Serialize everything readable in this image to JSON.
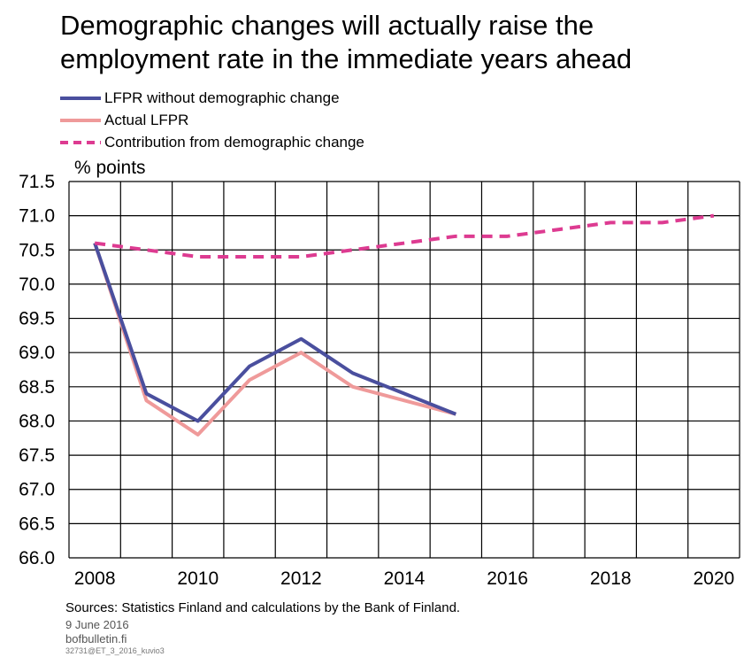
{
  "title": "Demographic changes will actually raise the employment rate in the immediate years ahead",
  "unit_label": "% points",
  "sources": "Sources: Statistics Finland and calculations by the Bank of Finland.",
  "date": "9 June 2016",
  "site": "bofbulletin.fi",
  "code": "32731@ET_3_2016_kuvio3",
  "colors": {
    "lfpr_without": "#4a4f9e",
    "actual": "#ef9a9a",
    "contribution": "#dd3b91",
    "grid": "#000000"
  },
  "chart_data": {
    "type": "line",
    "title": "Demographic changes will actually raise the employment rate in the immediate years ahead",
    "ylabel": "% points",
    "xlim": [
      2008,
      2020
    ],
    "ylim": [
      66.0,
      71.5
    ],
    "x_ticks": [
      2008,
      2010,
      2012,
      2014,
      2016,
      2018,
      2020
    ],
    "y_ticks": [
      "66.0",
      "66.5",
      "67.0",
      "67.5",
      "68.0",
      "68.5",
      "69.0",
      "69.5",
      "70.0",
      "70.5",
      "71.0",
      "71.5"
    ],
    "grid": true,
    "legend_position": "top-left",
    "series": [
      {
        "name": "LFPR without demographic change",
        "style": "solid",
        "x": [
          2008,
          2009,
          2010,
          2011,
          2012,
          2013,
          2014,
          2015
        ],
        "values": [
          70.6,
          68.4,
          68.0,
          68.8,
          69.2,
          68.7,
          68.4,
          68.1
        ]
      },
      {
        "name": "Actual LFPR",
        "style": "solid",
        "x": [
          2008,
          2009,
          2010,
          2011,
          2012,
          2013,
          2014,
          2015
        ],
        "values": [
          70.6,
          68.3,
          67.8,
          68.6,
          69.0,
          68.5,
          68.3,
          68.1
        ]
      },
      {
        "name": "Contribution from demographic change",
        "style": "dashed",
        "x": [
          2008,
          2009,
          2010,
          2011,
          2012,
          2013,
          2014,
          2015,
          2016,
          2017,
          2018,
          2019,
          2020
        ],
        "values": [
          70.6,
          70.5,
          70.4,
          70.4,
          70.4,
          70.5,
          70.6,
          70.7,
          70.7,
          70.8,
          70.9,
          70.9,
          71.0
        ]
      }
    ]
  }
}
